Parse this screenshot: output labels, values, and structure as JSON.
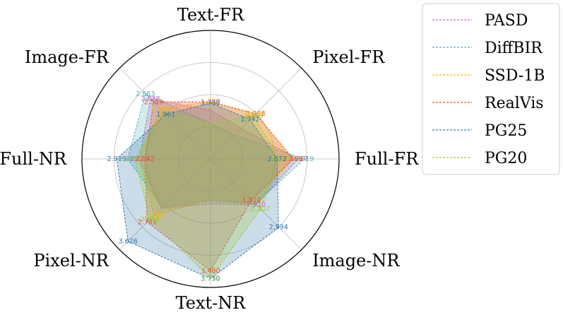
{
  "chart_data": {
    "type": "radar",
    "axes": [
      "Text-FR",
      "Pixel-FR",
      "Full-FR",
      "Image-NR",
      "Text-NR",
      "Pixel-NR",
      "Full-NR",
      "Image-FR"
    ],
    "series": [
      {
        "name": "PASD",
        "color": "#cc66cc",
        "values": [
          1.52,
          1.35,
          2.727,
          2.01,
          1.4,
          2.18,
          2.22,
          2.638
        ]
      },
      {
        "name": "DiffBIR",
        "color": "#4fb3b3",
        "values": [
          1.1,
          1.05,
          2.919,
          1.98,
          1.3,
          2.12,
          2.58,
          2.863
        ]
      },
      {
        "name": "SSD-1B",
        "color": "#ffbb00",
        "values": [
          1.775,
          1.981,
          2.569,
          1.95,
          1.25,
          2.483,
          2.22,
          2.215
        ]
      },
      {
        "name": "RealVis",
        "color": "#ee5522",
        "values": [
          1.78,
          1.988,
          2.568,
          1.81,
          3.48,
          2.781,
          2.042,
          2.503
        ]
      },
      {
        "name": "PG25",
        "color": "#3377aa",
        "values": [
          1.738,
          1.742,
          2.072,
          2.994,
          3.73,
          3.626,
          2.919,
          1.961
        ]
      },
      {
        "name": "PG20",
        "color": "#99cc33",
        "values": [
          1.1,
          1.888,
          2.169,
          2.207,
          3.719,
          2.658,
          2.362,
          2.1
        ]
      }
    ],
    "data_labels": [
      {
        "series": "RealVis",
        "axis": "Text-FR",
        "text": "1.780"
      },
      {
        "series": "SSD-1B",
        "axis": "Text-FR",
        "text": "1.775"
      },
      {
        "series": "PG25",
        "axis": "Text-FR",
        "text": "1.738"
      },
      {
        "series": "RealVis",
        "axis": "Pixel-FR",
        "text": "1.988"
      },
      {
        "series": "SSD-1B",
        "axis": "Pixel-FR",
        "text": "1.981"
      },
      {
        "series": "PG20",
        "axis": "Pixel-FR",
        "text": "1.888"
      },
      {
        "series": "PG25",
        "axis": "Pixel-FR",
        "text": "1.742"
      },
      {
        "series": "DiffBIR",
        "axis": "Full-FR",
        "text": "2.919"
      },
      {
        "series": "PASD",
        "axis": "Full-FR",
        "text": "2.727"
      },
      {
        "series": "SSD-1B",
        "axis": "Full-FR",
        "text": "2.569"
      },
      {
        "series": "RealVis",
        "axis": "Full-FR",
        "text": "2.568"
      },
      {
        "series": "PG20",
        "axis": "Full-FR",
        "text": "2.169"
      },
      {
        "series": "PG25",
        "axis": "Full-FR",
        "text": "2.072"
      },
      {
        "series": "PG25",
        "axis": "Image-NR",
        "text": "2.994"
      },
      {
        "series": "PG20",
        "axis": "Image-NR",
        "text": "2.207"
      },
      {
        "series": "PASD",
        "axis": "Image-NR",
        "text": "2.010"
      },
      {
        "series": "RealVis",
        "axis": "Image-NR",
        "text": "1.810"
      },
      {
        "series": "PG25",
        "axis": "Text-NR",
        "text": "3.730"
      },
      {
        "series": "PG20",
        "axis": "Text-NR",
        "text": "3.719"
      },
      {
        "series": "RealVis",
        "axis": "Text-NR",
        "text": "3.480"
      },
      {
        "series": "PG25",
        "axis": "Pixel-NR",
        "text": "3.626"
      },
      {
        "series": "RealVis",
        "axis": "Pixel-NR",
        "text": "2.781"
      },
      {
        "series": "PG20",
        "axis": "Pixel-NR",
        "text": "2.658"
      },
      {
        "series": "SSD-1B",
        "axis": "Pixel-NR",
        "text": "2.483"
      },
      {
        "series": "PG25",
        "axis": "Full-NR",
        "text": "2.919"
      },
      {
        "series": "DiffBIR",
        "axis": "Full-NR",
        "text": "2.580"
      },
      {
        "series": "PG20",
        "axis": "Full-NR",
        "text": "2.362"
      },
      {
        "series": "PASD",
        "axis": "Full-NR",
        "text": "2.220"
      },
      {
        "series": "RealVis",
        "axis": "Full-NR",
        "text": "2.042"
      },
      {
        "series": "DiffBIR",
        "axis": "Image-FR",
        "text": "2.863"
      },
      {
        "series": "PASD",
        "axis": "Image-FR",
        "text": "2.638"
      },
      {
        "series": "RealVis",
        "axis": "Image-FR",
        "text": "2.503"
      },
      {
        "series": "SSD-1B",
        "axis": "Image-FR",
        "text": "2.215"
      },
      {
        "series": "PG25",
        "axis": "Image-FR",
        "text": "1.961"
      }
    ],
    "grid": true,
    "legend": {
      "placement": "right"
    }
  }
}
